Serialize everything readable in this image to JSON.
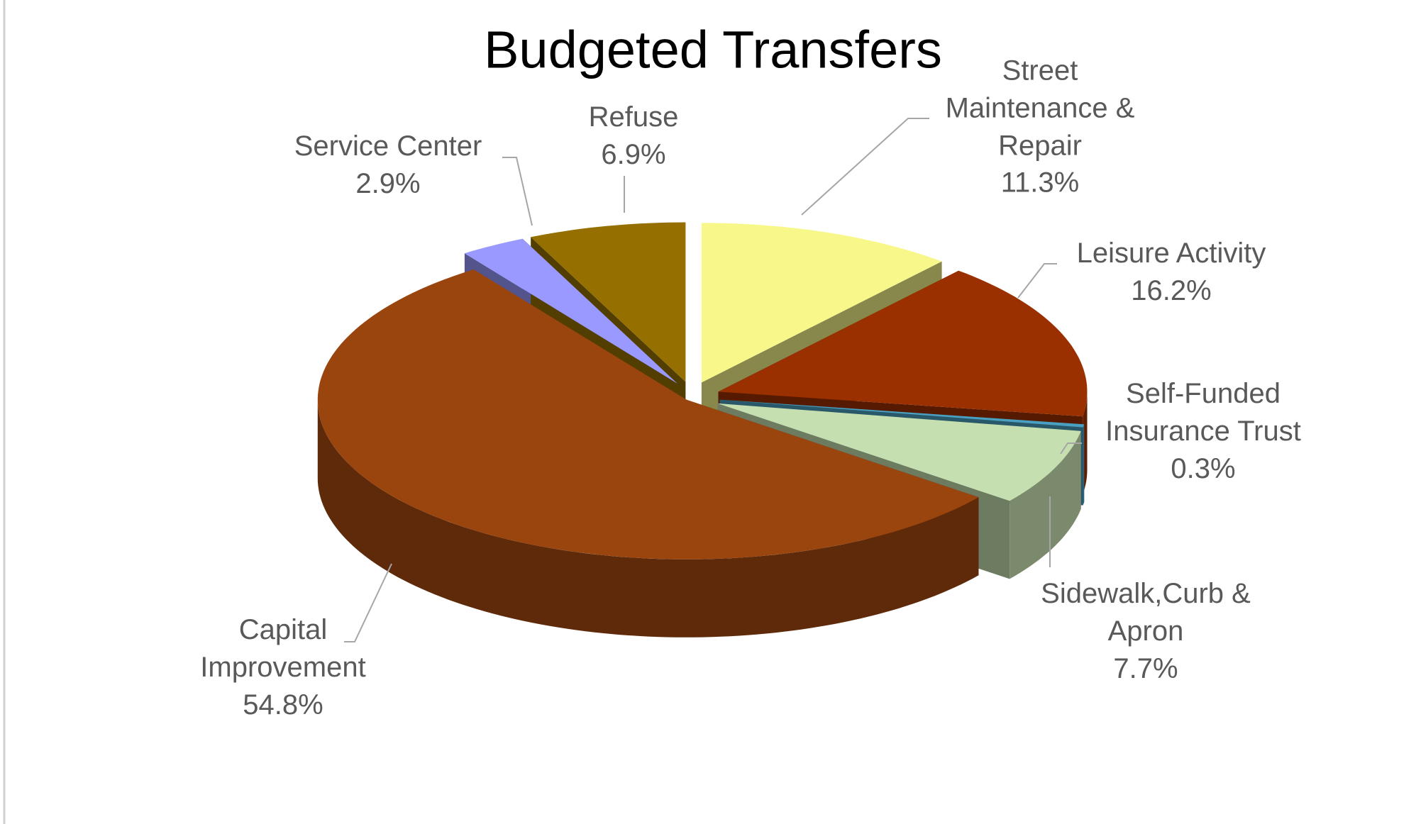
{
  "chart_data": {
    "type": "pie",
    "title": "Budgeted Transfers",
    "categories": [
      "Street Maintenance & Repair",
      "Leisure Activity",
      "Self-Funded Insurance Trust",
      "Sidewalk,Curb & Apron",
      "Capital Improvement",
      "Service Center",
      "Refuse"
    ],
    "values": [
      11.3,
      16.2,
      0.3,
      7.7,
      54.8,
      2.9,
      6.9
    ],
    "value_labels": [
      "11.3%",
      "16.2%",
      "0.3%",
      "7.7%",
      "54.8%",
      "2.9%",
      "6.9%"
    ],
    "colors": [
      "#f8f88a",
      "#9a3000",
      "#4aa0c0",
      "#c6dfb0",
      "#9a440e",
      "#9999ff",
      "#957000"
    ]
  }
}
